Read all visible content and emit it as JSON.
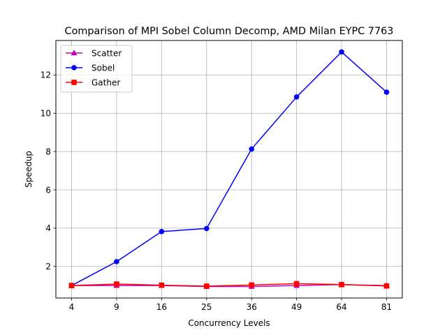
{
  "chart_data": {
    "type": "line",
    "title": "Comparison of MPI Sobel Column Decomp, AMD Milan EYPC 7763",
    "xlabel": "Concurrency Levels",
    "ylabel": "Speedup",
    "categories": [
      "4",
      "9",
      "16",
      "25",
      "36",
      "49",
      "64",
      "81"
    ],
    "ylim": [
      0.35,
      13.8
    ],
    "yticks": [
      2,
      4,
      6,
      8,
      10,
      12
    ],
    "ytick_labels": [
      "2",
      "4",
      "6",
      "8",
      "10",
      "12"
    ],
    "grid": true,
    "legend_position": "top-left",
    "series": [
      {
        "name": "Scatter",
        "color": "#bf00bf",
        "marker": "triangle",
        "values": [
          1.0,
          1.0,
          1.0,
          0.95,
          0.95,
          1.0,
          1.05,
          1.0
        ]
      },
      {
        "name": "Sobel",
        "color": "#0000ff",
        "marker": "circle",
        "values": [
          1.0,
          2.25,
          3.82,
          3.98,
          8.13,
          10.85,
          13.2,
          11.1
        ]
      },
      {
        "name": "Gather",
        "color": "#ff0000",
        "marker": "square",
        "values": [
          1.0,
          1.08,
          1.02,
          0.97,
          1.03,
          1.1,
          1.05,
          0.98
        ]
      }
    ]
  }
}
